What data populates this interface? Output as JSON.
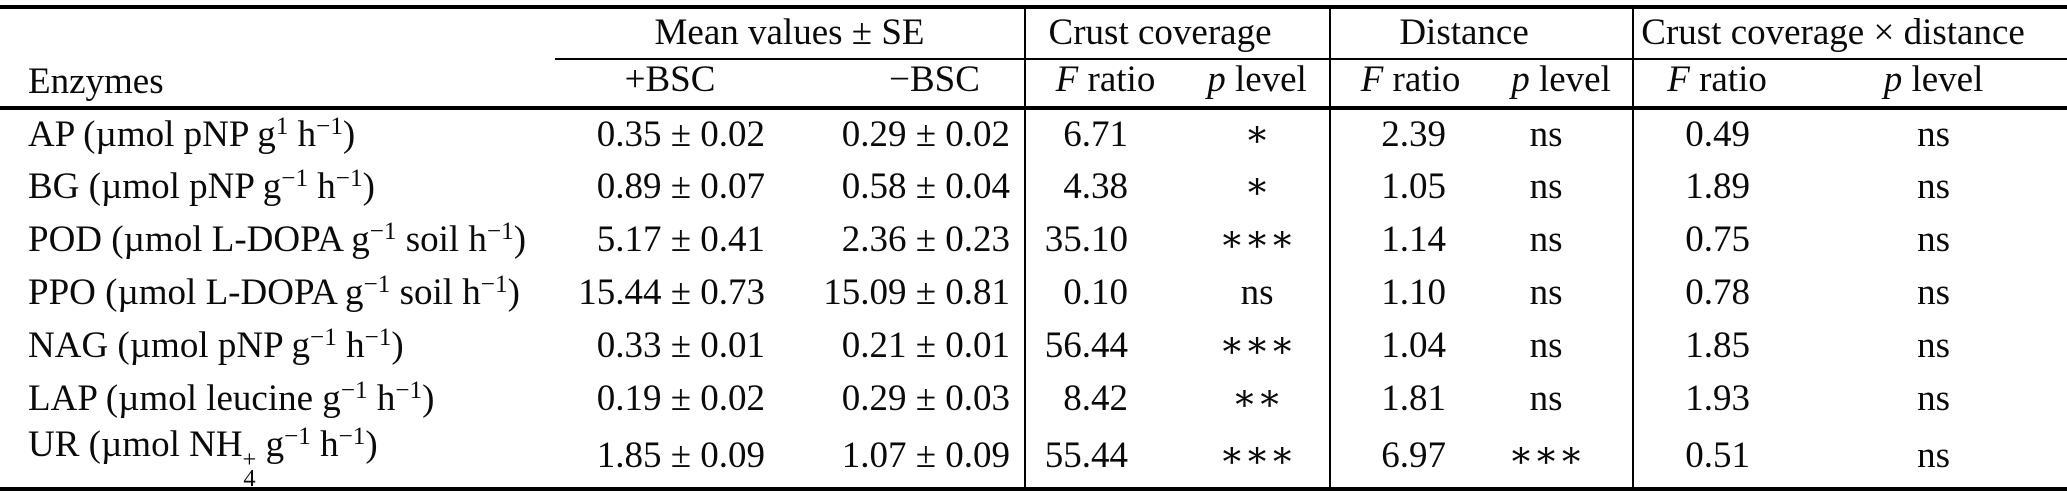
{
  "table": {
    "header": {
      "enzymes_label": "Enzymes",
      "groups": {
        "mean": "Mean values ± SE",
        "crust": "Crust coverage",
        "distance": "Distance",
        "cxd": "Crust coverage × distance"
      },
      "sub": {
        "plus_bsc": "+BSC",
        "minus_bsc": "−BSC",
        "f_ratio_parts": [
          {
            "t": "F",
            "s": "i"
          },
          {
            "t": " ratio"
          }
        ],
        "p_level_parts": [
          {
            "t": "p",
            "s": "i"
          },
          {
            "t": " level"
          }
        ]
      }
    },
    "rows": [
      {
        "name_parts": [
          {
            "t": "AP (µmol pNP g"
          },
          {
            "t": "1",
            "s": "sup"
          },
          {
            "t": " h"
          },
          {
            "t": "−1",
            "s": "sup"
          },
          {
            "t": ")"
          }
        ],
        "plus": "0.35 ± 0.02",
        "minus": "0.29 ± 0.02",
        "f_crust": "6.71",
        "p_crust": "∗",
        "f_dist": "2.39",
        "p_dist": "ns",
        "f_cxd": "0.49",
        "p_cxd": "ns"
      },
      {
        "name_parts": [
          {
            "t": "BG (µmol pNP g"
          },
          {
            "t": "−1",
            "s": "sup"
          },
          {
            "t": " h"
          },
          {
            "t": "−1",
            "s": "sup"
          },
          {
            "t": ")"
          }
        ],
        "plus": "0.89 ± 0.07",
        "minus": "0.58 ± 0.04",
        "f_crust": "4.38",
        "p_crust": "∗",
        "f_dist": "1.05",
        "p_dist": "ns",
        "f_cxd": "1.89",
        "p_cxd": "ns"
      },
      {
        "name_parts": [
          {
            "t": "POD (µmol L-DOPA g"
          },
          {
            "t": "−1",
            "s": "sup"
          },
          {
            "t": " soil h"
          },
          {
            "t": "−1",
            "s": "sup"
          },
          {
            "t": ")"
          }
        ],
        "plus": "5.17 ± 0.41",
        "minus": "2.36 ± 0.23",
        "f_crust": "35.10",
        "p_crust": "∗∗∗",
        "f_dist": "1.14",
        "p_dist": "ns",
        "f_cxd": "0.75",
        "p_cxd": "ns"
      },
      {
        "name_parts": [
          {
            "t": "PPO (µmol L-DOPA g"
          },
          {
            "t": "−1",
            "s": "sup"
          },
          {
            "t": " soil h"
          },
          {
            "t": "−1",
            "s": "sup"
          },
          {
            "t": ")"
          }
        ],
        "plus": "15.44 ± 0.73",
        "minus": "15.09 ± 0.81",
        "f_crust": "0.10",
        "p_crust": "ns",
        "f_dist": "1.10",
        "p_dist": "ns",
        "f_cxd": "0.78",
        "p_cxd": "ns"
      },
      {
        "name_parts": [
          {
            "t": "NAG (µmol pNP g"
          },
          {
            "t": "−1",
            "s": "sup"
          },
          {
            "t": " h"
          },
          {
            "t": "−1",
            "s": "sup"
          },
          {
            "t": ")"
          }
        ],
        "plus": "0.33 ± 0.01",
        "minus": "0.21 ± 0.01",
        "f_crust": "56.44",
        "p_crust": "∗∗∗",
        "f_dist": "1.04",
        "p_dist": "ns",
        "f_cxd": "1.85",
        "p_cxd": "ns"
      },
      {
        "name_parts": [
          {
            "t": "LAP (µmol leucine g"
          },
          {
            "t": "−1",
            "s": "sup"
          },
          {
            "t": " h"
          },
          {
            "t": "−1",
            "s": "sup"
          },
          {
            "t": ")"
          }
        ],
        "plus": "0.19 ± 0.02",
        "minus": "0.29 ± 0.03",
        "f_crust": "8.42",
        "p_crust": "∗∗",
        "f_dist": "1.81",
        "p_dist": "ns",
        "f_cxd": "1.93",
        "p_cxd": "ns"
      },
      {
        "name_parts": [
          {
            "t": "UR (µmol NH"
          },
          {
            "s": "stack",
            "over": "+",
            "under": "4"
          },
          {
            "t": " g"
          },
          {
            "t": "−1",
            "s": "sup"
          },
          {
            "t": " h"
          },
          {
            "t": "−1",
            "s": "sup"
          },
          {
            "t": ")"
          }
        ],
        "plus": "1.85 ± 0.09",
        "minus": "1.07 ± 0.09",
        "f_crust": "55.44",
        "p_crust": "∗∗∗",
        "f_dist": "6.97",
        "p_dist": "∗∗∗",
        "f_cxd": "0.51",
        "p_cxd": "ns"
      }
    ]
  }
}
